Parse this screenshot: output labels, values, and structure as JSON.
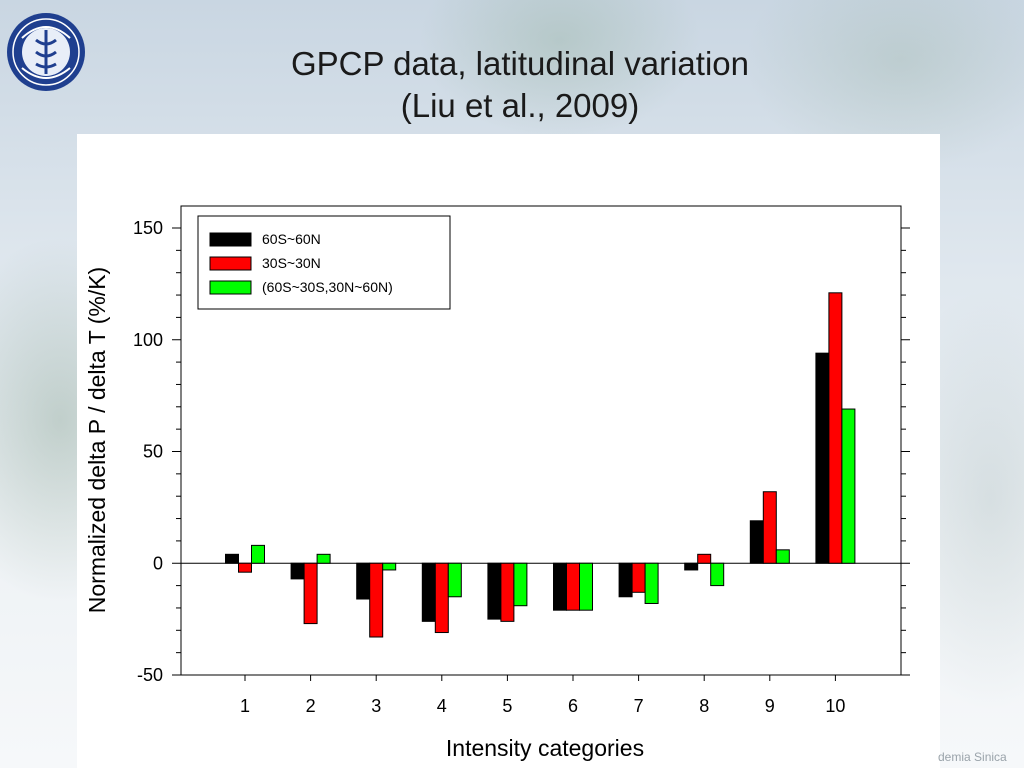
{
  "slide": {
    "title_line1": "GPCP data, latitudinal variation",
    "title_line2": "(Liu et al., 2009)",
    "watermark": "demia Sinica",
    "logo_icon": "academia-sinica-seal-icon",
    "logo_text": "ACADEMIA SINICA"
  },
  "chart_data": {
    "type": "bar",
    "xlabel": "Intensity categories",
    "ylabel": "Normalized delta P / delta T (%/K)",
    "categories": [
      "1",
      "2",
      "3",
      "4",
      "5",
      "6",
      "7",
      "8",
      "9",
      "10"
    ],
    "ylim": [
      -50,
      150
    ],
    "yticks": [
      -50,
      0,
      50,
      100,
      150
    ],
    "grid": false,
    "legend_position": "top-left",
    "series": [
      {
        "name": "60S~60N",
        "color": "#000000",
        "values": [
          4,
          -7,
          -16,
          -26,
          -25,
          -21,
          -15,
          -3,
          19,
          94
        ]
      },
      {
        "name": "30S~30N",
        "color": "#ff0000",
        "values": [
          -4,
          -27,
          -33,
          -31,
          -26,
          -21,
          -13,
          4,
          32,
          121
        ]
      },
      {
        "name": "(60S~30S,30N~60N)",
        "color": "#00ff00",
        "values": [
          8,
          4,
          -3,
          -15,
          -19,
          -21,
          -18,
          -10,
          6,
          69
        ]
      }
    ]
  }
}
